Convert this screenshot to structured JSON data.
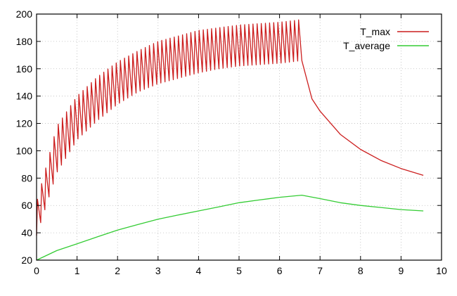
{
  "chart_data": {
    "type": "line",
    "title": "",
    "xlabel": "",
    "ylabel": "",
    "xlim": [
      0,
      10
    ],
    "ylim": [
      20,
      200
    ],
    "xticks": [
      0,
      1,
      2,
      3,
      4,
      5,
      6,
      7,
      8,
      9,
      10
    ],
    "yticks": [
      20,
      40,
      60,
      80,
      100,
      120,
      140,
      160,
      180,
      200
    ],
    "grid": true,
    "legend_position": "top-right",
    "series": [
      {
        "name": "T_max",
        "color": "#cc1f1f",
        "pattern": "oscillating envelope while heating, smooth decay after",
        "upper_envelope": [
          [
            0.0,
            62
          ],
          [
            0.5,
            118
          ],
          [
            1.0,
            140
          ],
          [
            1.5,
            154
          ],
          [
            2.0,
            165
          ],
          [
            2.5,
            173
          ],
          [
            3.0,
            180
          ],
          [
            3.5,
            184
          ],
          [
            4.0,
            188
          ],
          [
            4.5,
            190
          ],
          [
            5.0,
            192
          ],
          [
            5.5,
            193
          ],
          [
            6.0,
            194
          ],
          [
            6.55,
            196
          ]
        ],
        "lower_envelope": [
          [
            0.0,
            38
          ],
          [
            0.5,
            84
          ],
          [
            1.0,
            108
          ],
          [
            1.5,
            122
          ],
          [
            2.0,
            134
          ],
          [
            2.5,
            143
          ],
          [
            3.0,
            149
          ],
          [
            3.5,
            153
          ],
          [
            4.0,
            157
          ],
          [
            4.5,
            160
          ],
          [
            5.0,
            162
          ],
          [
            5.5,
            163
          ],
          [
            6.0,
            164
          ],
          [
            6.55,
            166
          ]
        ],
        "decay": [
          [
            6.55,
            166
          ],
          [
            6.8,
            138
          ],
          [
            7.0,
            129
          ],
          [
            7.5,
            112
          ],
          [
            8.0,
            101
          ],
          [
            8.5,
            93
          ],
          [
            9.0,
            87
          ],
          [
            9.55,
            82
          ]
        ]
      },
      {
        "name": "T_average",
        "color": "#33cc33",
        "points": [
          [
            0.0,
            20
          ],
          [
            0.5,
            27
          ],
          [
            1.0,
            32
          ],
          [
            1.5,
            37
          ],
          [
            2.0,
            42
          ],
          [
            2.5,
            46
          ],
          [
            3.0,
            50
          ],
          [
            3.5,
            53
          ],
          [
            4.0,
            56
          ],
          [
            4.5,
            59
          ],
          [
            5.0,
            62
          ],
          [
            5.5,
            64
          ],
          [
            6.0,
            66
          ],
          [
            6.55,
            67.5
          ],
          [
            7.0,
            65
          ],
          [
            7.5,
            62
          ],
          [
            8.0,
            60
          ],
          [
            8.5,
            58.5
          ],
          [
            9.0,
            57
          ],
          [
            9.55,
            56
          ]
        ]
      }
    ]
  }
}
